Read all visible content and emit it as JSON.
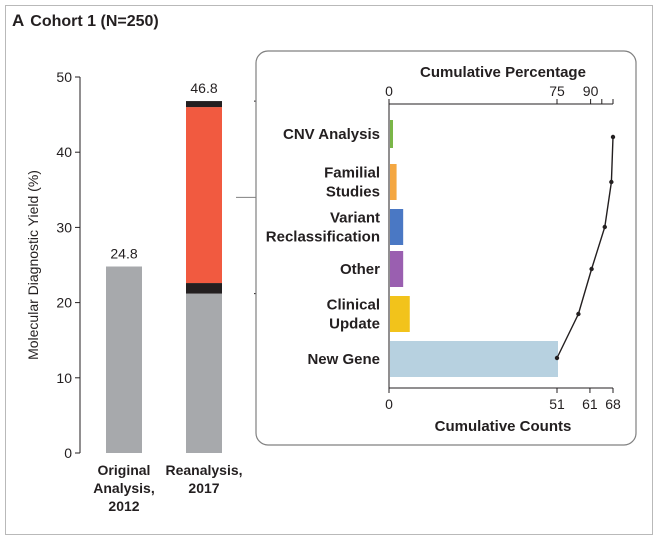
{
  "panel": {
    "letter": "A",
    "title": "Cohort 1 (N=250)"
  },
  "chart_data": [
    {
      "type": "bar",
      "ylabel": "Molecular Diagnostic Yield (%)",
      "ylim": [
        0,
        50
      ],
      "yticks": [
        0,
        10,
        20,
        30,
        40,
        50
      ],
      "categories": [
        [
          "Original",
          "Analysis,",
          "2012"
        ],
        [
          "Reanalysis,",
          "2017"
        ]
      ],
      "stack_segments": [
        {
          "bar": 0,
          "from": 0,
          "to": 24.8,
          "color": "#a7a9ac"
        },
        {
          "bar": 1,
          "from": 0,
          "to": 21.2,
          "color": "#a7a9ac"
        },
        {
          "bar": 1,
          "from": 21.2,
          "to": 22.6,
          "color": "#231f20"
        },
        {
          "bar": 1,
          "from": 22.6,
          "to": 46.0,
          "color": "#f15a40"
        },
        {
          "bar": 1,
          "from": 46.0,
          "to": 46.8,
          "color": "#231f20"
        }
      ],
      "data_labels": [
        "24.8",
        "46.8"
      ],
      "bracket": {
        "from": 21.2,
        "to": 46.8
      }
    },
    {
      "type": "bar",
      "orientation": "horizontal",
      "top_axis_label": "Cumulative Percentage",
      "bottom_axis_label": "Cumulative Counts",
      "xlim": [
        0,
        68
      ],
      "bottom_ticks": [
        0,
        51,
        61,
        68
      ],
      "top_ticks": [
        {
          "label": "0",
          "count": 0
        },
        {
          "label": "75",
          "count": 51
        },
        {
          "label": "90",
          "count": 61.2
        },
        {
          "label": "",
          "count": 64.6
        },
        {
          "label": "",
          "count": 68
        }
      ],
      "categories": [
        [
          "CNV Analysis"
        ],
        [
          "Familial",
          "Studies"
        ],
        [
          "Variant",
          "Reclassification"
        ],
        [
          "Other"
        ],
        [
          "Clinical",
          "Update"
        ],
        [
          "New Gene"
        ]
      ],
      "values": [
        0.5,
        2,
        4,
        4,
        6,
        51
      ],
      "colors": [
        "#7ab648",
        "#f4a742",
        "#4a78c4",
        "#9a5fb0",
        "#f2c31b",
        "#b7d1e0"
      ],
      "cumulative_counts": [
        68,
        67.5,
        65.5,
        61.5,
        57.5,
        51
      ]
    }
  ]
}
